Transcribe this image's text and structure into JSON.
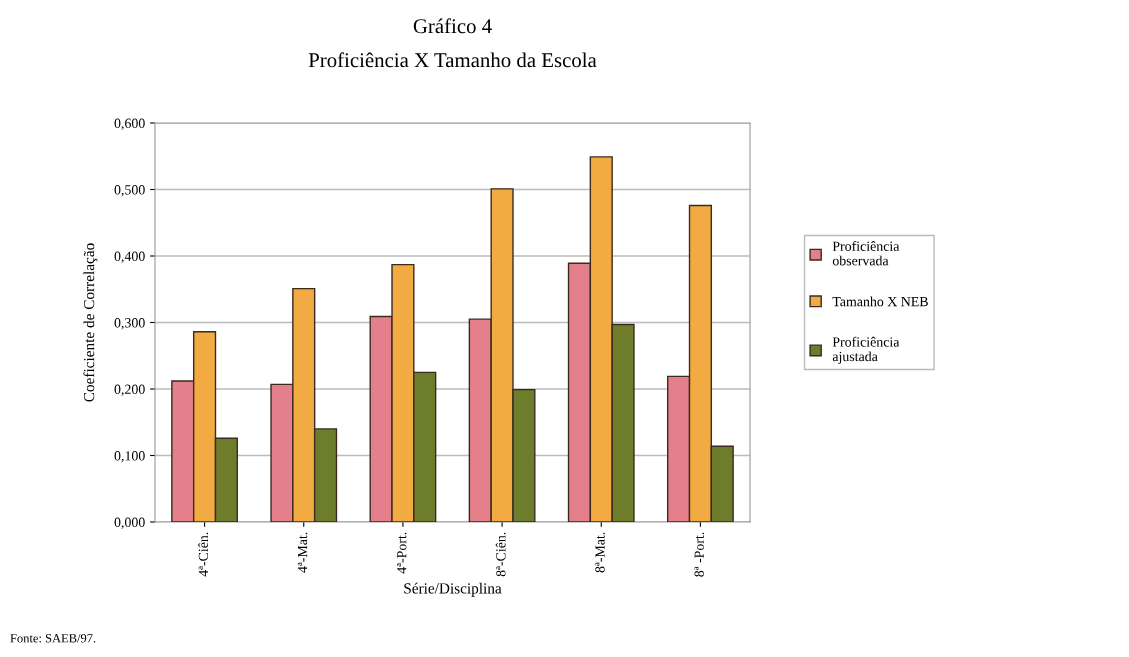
{
  "chart_data": {
    "type": "bar",
    "title": "Gráfico 4",
    "subtitle": "Proficiência X Tamanho da Escola",
    "xlabel": "Série/Disciplina",
    "ylabel": "Coeficiente de Correlação",
    "categories": [
      "4ª-Ciên.",
      "4ª-Mat.",
      "4ª-Port.",
      "8ª-Ciên.",
      "8ª-Mat.",
      "8ª -Port."
    ],
    "series": [
      {
        "name": "Proficiência\nobservada",
        "color": "#e47f8c",
        "values": [
          0.212,
          0.207,
          0.309,
          0.305,
          0.389,
          0.219
        ]
      },
      {
        "name": "Tamanho X NEB",
        "color": "#f2ab42",
        "values": [
          0.286,
          0.351,
          0.387,
          0.501,
          0.549,
          0.476
        ]
      },
      {
        "name": "Proficiência\najustada",
        "color": "#6e7d2c",
        "values": [
          0.126,
          0.14,
          0.225,
          0.199,
          0.297,
          0.114
        ]
      }
    ],
    "ylim": [
      0,
      0.6
    ],
    "yticks": [
      {
        "value": 0,
        "label": "0,000"
      },
      {
        "value": 0.1,
        "label": "0,100"
      },
      {
        "value": 0.2,
        "label": "0,200"
      },
      {
        "value": 0.3,
        "label": "0,300"
      },
      {
        "value": 0.4,
        "label": "0,400"
      },
      {
        "value": 0.5,
        "label": "0,500"
      },
      {
        "value": 0.6,
        "label": "0,600"
      }
    ],
    "grid": "y",
    "legend": "right",
    "annotations": [
      "Fonte: SAEB/97."
    ]
  }
}
